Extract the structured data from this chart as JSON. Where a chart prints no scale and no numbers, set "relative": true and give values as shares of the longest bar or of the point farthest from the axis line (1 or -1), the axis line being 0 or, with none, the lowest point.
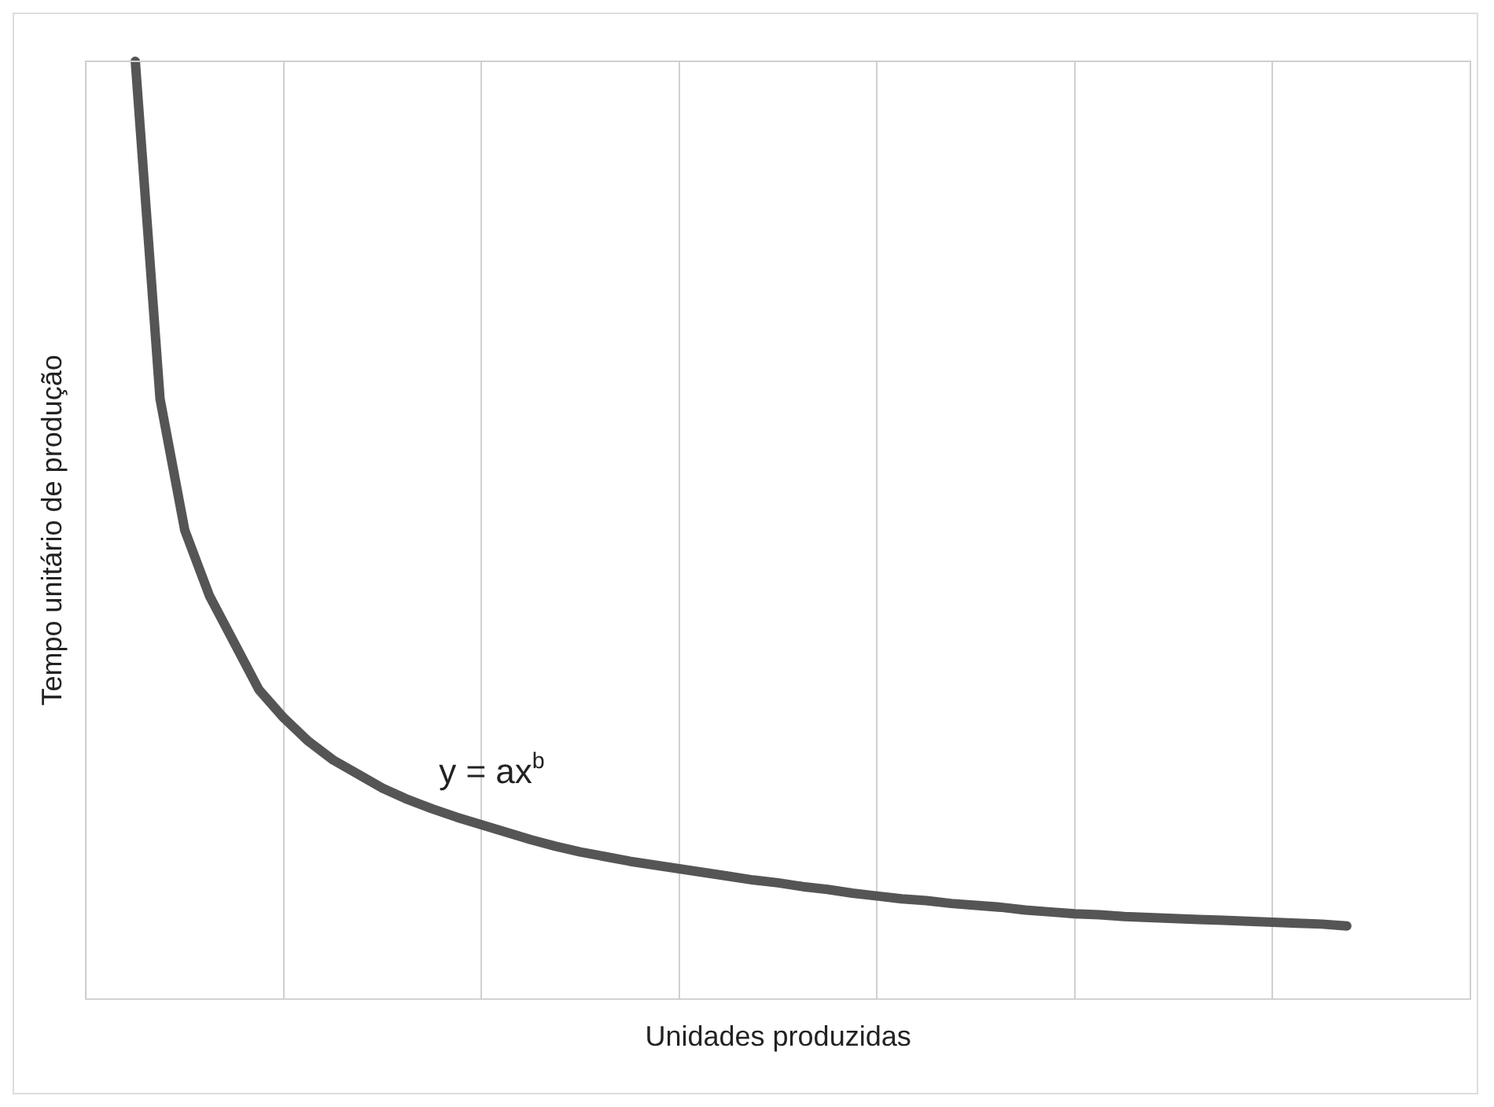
{
  "chart_data": {
    "type": "line",
    "relative": true,
    "xlabel": "Unidades produzidas",
    "ylabel": "Tempo unitário de produção",
    "categories": [
      null,
      null,
      null,
      null,
      null,
      null,
      null,
      null,
      null,
      null,
      null,
      null,
      null,
      null,
      null,
      null,
      null,
      null,
      null,
      null,
      null,
      null,
      null,
      null,
      null,
      null,
      null,
      null,
      null,
      null,
      null,
      null,
      null,
      null,
      null,
      null,
      null,
      null,
      null,
      null,
      null,
      null,
      null,
      null,
      null,
      null,
      null,
      null,
      null,
      null,
      null,
      null,
      null,
      null,
      null,
      null,
      null
    ],
    "values": [
      null,
      null,
      1.0,
      0.64,
      0.5,
      0.43,
      0.38,
      0.33,
      0.3,
      0.275,
      0.255,
      0.24,
      0.225,
      0.213,
      0.203,
      0.194,
      0.186,
      0.178,
      0.17,
      0.163,
      0.157,
      0.152,
      0.147,
      0.143,
      0.139,
      0.135,
      0.131,
      0.127,
      0.124,
      0.12,
      0.117,
      0.113,
      0.11,
      0.107,
      0.105,
      0.102,
      0.1,
      0.098,
      0.095,
      0.093,
      0.091,
      0.09,
      0.088,
      0.087,
      0.086,
      0.085,
      0.084,
      0.083,
      0.082,
      0.081,
      0.08,
      0.078,
      null,
      null,
      null,
      null,
      null
    ],
    "color": "#555555",
    "grid": "x",
    "annotations": [
      "y = ax$^{b}$"
    ]
  }
}
